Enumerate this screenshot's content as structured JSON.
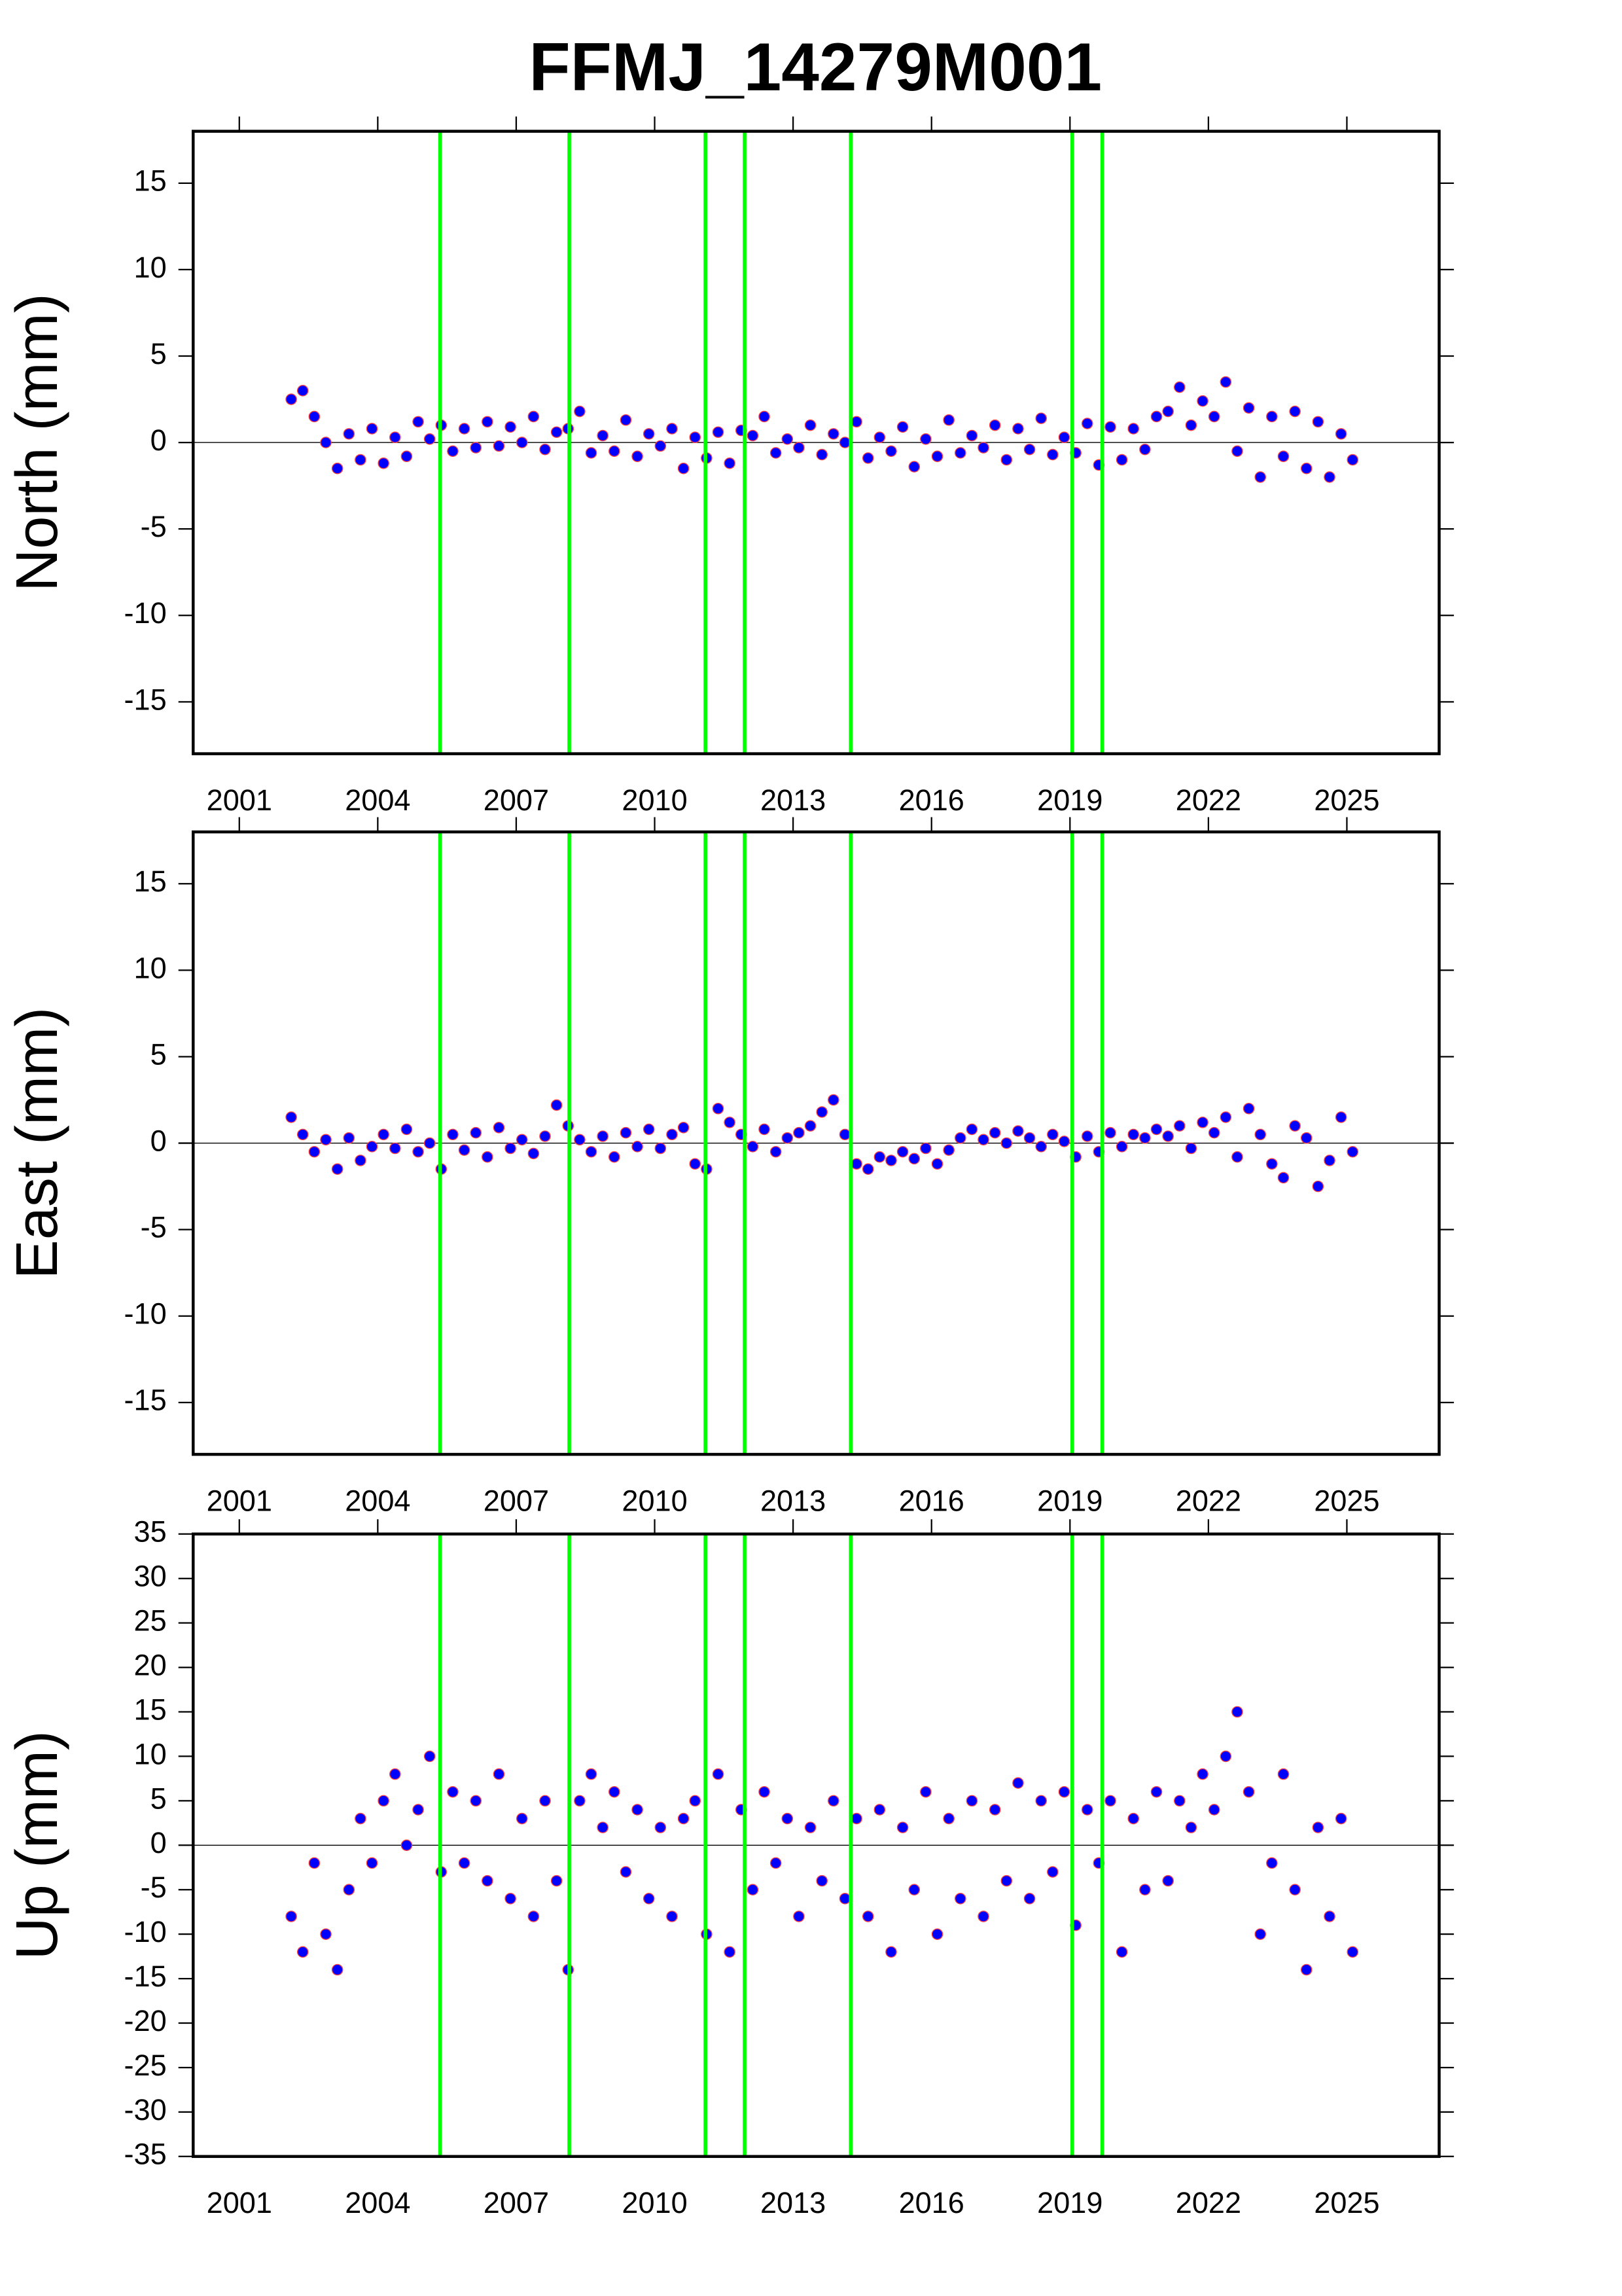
{
  "title": "FFMJ_14279M001",
  "chart_data": [
    {
      "type": "scatter",
      "ylabel": "North (mm)",
      "color": "#0000ff",
      "event_color": "#00ff00",
      "xlim": [
        2000,
        2027
      ],
      "xticks": [
        2001,
        2004,
        2007,
        2010,
        2013,
        2016,
        2019,
        2022,
        2025
      ],
      "ylim": [
        -18,
        18
      ],
      "yticks": [
        -15,
        -10,
        -5,
        0,
        5,
        10,
        15
      ],
      "events": [
        2005.35,
        2008.15,
        2011.1,
        2011.95,
        2014.25,
        2019.05,
        2019.7
      ],
      "x": [
        2002.125,
        2002.375,
        2002.625,
        2002.875,
        2003.125,
        2003.375,
        2003.625,
        2003.875,
        2004.125,
        2004.375,
        2004.625,
        2004.875,
        2005.125,
        2005.375,
        2005.625,
        2005.875,
        2006.125,
        2006.375,
        2006.625,
        2006.875,
        2007.125,
        2007.375,
        2007.625,
        2007.875,
        2008.125,
        2008.375,
        2008.625,
        2008.875,
        2009.125,
        2009.375,
        2009.625,
        2009.875,
        2010.125,
        2010.375,
        2010.625,
        2010.875,
        2011.125,
        2011.375,
        2011.625,
        2011.875,
        2012.125,
        2012.375,
        2012.625,
        2012.875,
        2013.125,
        2013.375,
        2013.625,
        2013.875,
        2014.125,
        2014.375,
        2014.625,
        2014.875,
        2015.125,
        2015.375,
        2015.625,
        2015.875,
        2016.125,
        2016.375,
        2016.625,
        2016.875,
        2017.125,
        2017.375,
        2017.625,
        2017.875,
        2018.125,
        2018.375,
        2018.625,
        2018.875,
        2019.125,
        2019.375,
        2019.625,
        2019.875,
        2020.125,
        2020.375,
        2020.625,
        2020.875,
        2021.125,
        2021.375,
        2021.625,
        2021.875,
        2022.125,
        2022.375,
        2022.625,
        2022.875,
        2023.125,
        2023.375,
        2023.625,
        2023.875,
        2024.125,
        2024.375,
        2024.625,
        2024.875,
        2025.125
      ],
      "values": [
        2.5,
        3.0,
        1.5,
        0.0,
        -1.5,
        0.5,
        -1.0,
        0.8,
        -1.2,
        0.3,
        -0.8,
        1.2,
        0.2,
        1.0,
        -0.5,
        0.8,
        -0.3,
        1.2,
        -0.2,
        0.9,
        0.0,
        1.5,
        -0.4,
        0.6,
        0.8,
        1.8,
        -0.6,
        0.4,
        -0.5,
        1.3,
        -0.8,
        0.5,
        -0.2,
        0.8,
        -1.5,
        0.3,
        -0.9,
        0.6,
        -1.2,
        0.7,
        0.4,
        1.5,
        -0.6,
        0.2,
        -0.3,
        1.0,
        -0.7,
        0.5,
        0.0,
        1.2,
        -0.9,
        0.3,
        -0.5,
        0.9,
        -1.4,
        0.2,
        -0.8,
        1.3,
        -0.6,
        0.4,
        -0.3,
        1.0,
        -1.0,
        0.8,
        -0.4,
        1.4,
        -0.7,
        0.3,
        -0.6,
        1.1,
        -1.3,
        0.9,
        -1.0,
        0.8,
        -0.4,
        1.5,
        1.8,
        3.2,
        1.0,
        2.4,
        1.5,
        3.5,
        -0.5,
        2.0,
        -2.0,
        1.5,
        -0.8,
        1.8,
        -1.5,
        1.2,
        -2.0,
        0.5,
        -1.0
      ]
    },
    {
      "type": "scatter",
      "ylabel": "East (mm)",
      "color": "#0000ff",
      "event_color": "#00ff00",
      "xlim": [
        2000,
        2027
      ],
      "xticks": [
        2001,
        2004,
        2007,
        2010,
        2013,
        2016,
        2019,
        2022,
        2025
      ],
      "ylim": [
        -18,
        18
      ],
      "yticks": [
        -15,
        -10,
        -5,
        0,
        5,
        10,
        15
      ],
      "events": [
        2005.35,
        2008.15,
        2011.1,
        2011.95,
        2014.25,
        2019.05,
        2019.7
      ],
      "x": [
        2002.125,
        2002.375,
        2002.625,
        2002.875,
        2003.125,
        2003.375,
        2003.625,
        2003.875,
        2004.125,
        2004.375,
        2004.625,
        2004.875,
        2005.125,
        2005.375,
        2005.625,
        2005.875,
        2006.125,
        2006.375,
        2006.625,
        2006.875,
        2007.125,
        2007.375,
        2007.625,
        2007.875,
        2008.125,
        2008.375,
        2008.625,
        2008.875,
        2009.125,
        2009.375,
        2009.625,
        2009.875,
        2010.125,
        2010.375,
        2010.625,
        2010.875,
        2011.125,
        2011.375,
        2011.625,
        2011.875,
        2012.125,
        2012.375,
        2012.625,
        2012.875,
        2013.125,
        2013.375,
        2013.625,
        2013.875,
        2014.125,
        2014.375,
        2014.625,
        2014.875,
        2015.125,
        2015.375,
        2015.625,
        2015.875,
        2016.125,
        2016.375,
        2016.625,
        2016.875,
        2017.125,
        2017.375,
        2017.625,
        2017.875,
        2018.125,
        2018.375,
        2018.625,
        2018.875,
        2019.125,
        2019.375,
        2019.625,
        2019.875,
        2020.125,
        2020.375,
        2020.625,
        2020.875,
        2021.125,
        2021.375,
        2021.625,
        2021.875,
        2022.125,
        2022.375,
        2022.625,
        2022.875,
        2023.125,
        2023.375,
        2023.625,
        2023.875,
        2024.125,
        2024.375,
        2024.625,
        2024.875,
        2025.125
      ],
      "values": [
        1.5,
        0.5,
        -0.5,
        0.2,
        -1.5,
        0.3,
        -1.0,
        -0.2,
        0.5,
        -0.3,
        0.8,
        -0.5,
        0.0,
        -1.5,
        0.5,
        -0.4,
        0.6,
        -0.8,
        0.9,
        -0.3,
        0.2,
        -0.6,
        0.4,
        2.2,
        1.0,
        0.2,
        -0.5,
        0.4,
        -0.8,
        0.6,
        -0.2,
        0.8,
        -0.3,
        0.5,
        0.9,
        -1.2,
        -1.5,
        2.0,
        1.2,
        0.5,
        -0.2,
        0.8,
        -0.5,
        0.3,
        0.6,
        1.0,
        1.8,
        2.5,
        0.5,
        -1.2,
        -1.5,
        -0.8,
        -1.0,
        -0.5,
        -0.9,
        -0.3,
        -1.2,
        -0.4,
        0.3,
        0.8,
        0.2,
        0.6,
        0.0,
        0.7,
        0.3,
        -0.2,
        0.5,
        0.1,
        -0.8,
        0.4,
        -0.5,
        0.6,
        -0.2,
        0.5,
        0.3,
        0.8,
        0.4,
        1.0,
        -0.3,
        1.2,
        0.6,
        1.5,
        -0.8,
        2.0,
        0.5,
        -1.2,
        -2.0,
        1.0,
        0.3,
        -2.5,
        -1.0,
        1.5,
        -0.5
      ]
    },
    {
      "type": "scatter",
      "ylabel": "Up (mm)",
      "color": "#0000ff",
      "event_color": "#00ff00",
      "xlim": [
        2000,
        2027
      ],
      "xticks": [
        2001,
        2004,
        2007,
        2010,
        2013,
        2016,
        2019,
        2022,
        2025
      ],
      "ylim": [
        -35,
        35
      ],
      "yticks": [
        -35,
        -30,
        -25,
        -20,
        -15,
        -10,
        -5,
        0,
        5,
        10,
        15,
        20,
        25,
        30,
        35
      ],
      "events": [
        2005.35,
        2008.15,
        2011.1,
        2011.95,
        2014.25,
        2019.05,
        2019.7
      ],
      "x": [
        2002.125,
        2002.375,
        2002.625,
        2002.875,
        2003.125,
        2003.375,
        2003.625,
        2003.875,
        2004.125,
        2004.375,
        2004.625,
        2004.875,
        2005.125,
        2005.375,
        2005.625,
        2005.875,
        2006.125,
        2006.375,
        2006.625,
        2006.875,
        2007.125,
        2007.375,
        2007.625,
        2007.875,
        2008.125,
        2008.375,
        2008.625,
        2008.875,
        2009.125,
        2009.375,
        2009.625,
        2009.875,
        2010.125,
        2010.375,
        2010.625,
        2010.875,
        2011.125,
        2011.375,
        2011.625,
        2011.875,
        2012.125,
        2012.375,
        2012.625,
        2012.875,
        2013.125,
        2013.375,
        2013.625,
        2013.875,
        2014.125,
        2014.375,
        2014.625,
        2014.875,
        2015.125,
        2015.375,
        2015.625,
        2015.875,
        2016.125,
        2016.375,
        2016.625,
        2016.875,
        2017.125,
        2017.375,
        2017.625,
        2017.875,
        2018.125,
        2018.375,
        2018.625,
        2018.875,
        2019.125,
        2019.375,
        2019.625,
        2019.875,
        2020.125,
        2020.375,
        2020.625,
        2020.875,
        2021.125,
        2021.375,
        2021.625,
        2021.875,
        2022.125,
        2022.375,
        2022.625,
        2022.875,
        2023.125,
        2023.375,
        2023.625,
        2023.875,
        2024.125,
        2024.375,
        2024.625,
        2024.875,
        2025.125
      ],
      "values": [
        -8,
        -12,
        -2,
        -10,
        -14,
        -5,
        3,
        -2,
        5,
        8,
        0,
        4,
        10,
        -3,
        6,
        -2,
        5,
        -4,
        8,
        -6,
        3,
        -8,
        5,
        -4,
        -14,
        5,
        8,
        2,
        6,
        -3,
        4,
        -6,
        2,
        -8,
        3,
        5,
        -10,
        8,
        -12,
        4,
        -5,
        6,
        -2,
        3,
        -8,
        2,
        -4,
        5,
        -6,
        3,
        -8,
        4,
        -12,
        2,
        -5,
        6,
        -10,
        3,
        -6,
        5,
        -8,
        4,
        -4,
        7,
        -6,
        5,
        -3,
        6,
        -9,
        4,
        -2,
        5,
        -12,
        3,
        -5,
        6,
        -4,
        5,
        2,
        8,
        4,
        10,
        15,
        6,
        -10,
        -2,
        8,
        -5,
        -14,
        2,
        -8,
        3,
        -12
      ]
    }
  ]
}
